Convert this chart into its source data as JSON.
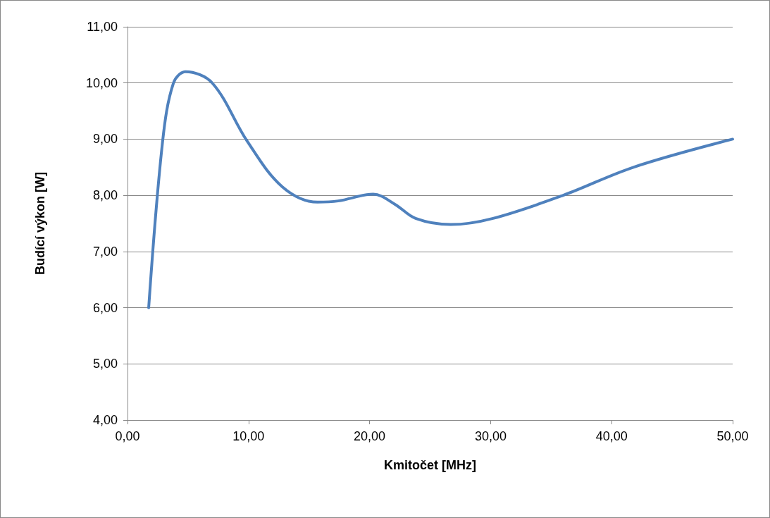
{
  "chart_data": {
    "type": "line",
    "xlabel": "Kmitočet [MHz]",
    "ylabel": "Budící výkon [W]",
    "x": [
      1.75,
      2.9,
      3.8,
      4.8,
      7.0,
      9.9,
      12.8,
      15.7,
      17.4,
      20.3,
      22.1,
      23.8,
      26.7,
      30.2,
      36.0,
      41.8,
      50.0
    ],
    "series": [
      {
        "color": "#4f81bd",
        "values": [
          6.0,
          8.96,
          10.0,
          10.2,
          10.0,
          8.96,
          8.15,
          7.88,
          7.9,
          8.02,
          7.84,
          7.59,
          7.48,
          7.59,
          8.0,
          8.5,
          9.0
        ]
      }
    ],
    "xlim": [
      0,
      50
    ],
    "ylim": [
      4,
      11
    ],
    "xticks": [
      {
        "value": 0,
        "label": "0,00"
      },
      {
        "value": 10,
        "label": "10,00"
      },
      {
        "value": 20,
        "label": "20,00"
      },
      {
        "value": 30,
        "label": "30,00"
      },
      {
        "value": 40,
        "label": "40,00"
      },
      {
        "value": 50,
        "label": "50,00"
      }
    ],
    "yticks": [
      {
        "value": 4,
        "label": "4,00"
      },
      {
        "value": 5,
        "label": "5,00"
      },
      {
        "value": 6,
        "label": "6,00"
      },
      {
        "value": 7,
        "label": "7,00"
      },
      {
        "value": 8,
        "label": "8,00"
      },
      {
        "value": 9,
        "label": "9,00"
      },
      {
        "value": 10,
        "label": "10,00"
      },
      {
        "value": 11,
        "label": "11,00"
      }
    ],
    "grid": "y",
    "marker": "none",
    "line_style": "solid"
  }
}
